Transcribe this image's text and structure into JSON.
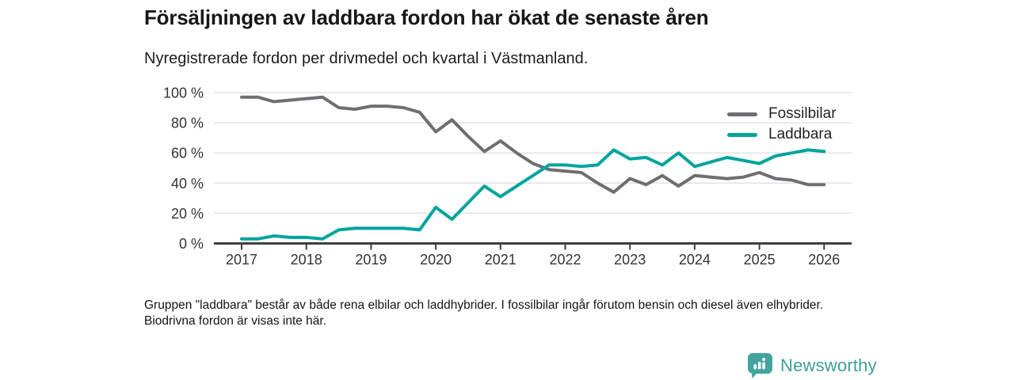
{
  "header": {
    "title": "Försäljningen av laddbara fordon har ökat de senaste åren",
    "subtitle": "Nyregistrerade fordon per drivmedel och kvartal i Västmanland."
  },
  "chart_data": {
    "type": "line",
    "x": [
      2017,
      2017.25,
      2017.5,
      2017.75,
      2018,
      2018.25,
      2018.5,
      2018.75,
      2019,
      2019.25,
      2019.5,
      2019.75,
      2020,
      2020.25,
      2020.5,
      2020.75,
      2021,
      2021.25,
      2021.5,
      2021.75,
      2022,
      2022.25,
      2022.5,
      2022.75,
      2023,
      2023.25,
      2023.5,
      2023.75,
      2024,
      2024.25,
      2024.5,
      2024.75,
      2025,
      2025.25,
      2025.5,
      2025.75,
      2026
    ],
    "series": [
      {
        "name": "Fossilbilar",
        "color": "#6e6e72",
        "values": [
          97,
          97,
          94,
          95,
          96,
          97,
          90,
          89,
          91,
          91,
          90,
          87,
          74,
          82,
          71,
          61,
          68,
          60,
          53,
          49,
          48,
          47,
          40,
          34,
          43,
          39,
          45,
          38,
          45,
          44,
          43,
          44,
          47,
          43,
          42,
          39,
          39
        ]
      },
      {
        "name": "Laddbara",
        "color": "#00a49c",
        "values": [
          3,
          3,
          5,
          4,
          4,
          3,
          9,
          10,
          10,
          10,
          10,
          9,
          24,
          16,
          27,
          38,
          31,
          38,
          45,
          52,
          52,
          51,
          52,
          62,
          56,
          57,
          52,
          60,
          51,
          54,
          57,
          55,
          53,
          58,
          60,
          62,
          61
        ]
      }
    ],
    "x_ticks": [
      2017,
      2018,
      2019,
      2020,
      2021,
      2022,
      2023,
      2024,
      2025,
      2026
    ],
    "y_ticks": [
      0,
      20,
      40,
      60,
      80,
      100
    ],
    "y_tick_suffix": " %",
    "ylim": [
      0,
      100
    ],
    "xlim": [
      2017,
      2026.4
    ],
    "grid": true,
    "legend_position": "top-right"
  },
  "footnote": "Gruppen \"laddbara\" består av både rena elbilar och laddhybrider. I fossilbilar ingår förutom bensin och diesel även elhybrider. Biodrivna fordon är visas inte här.",
  "logo": {
    "text": "Newsworthy"
  },
  "colors": {
    "accent_teal": "#00a49c",
    "line_gray": "#6e6e72",
    "grid": "#e3e3e3",
    "axis": "#3f3f3f",
    "logo_teal": "#3d9e99",
    "logo_badge": "#43a49e"
  }
}
